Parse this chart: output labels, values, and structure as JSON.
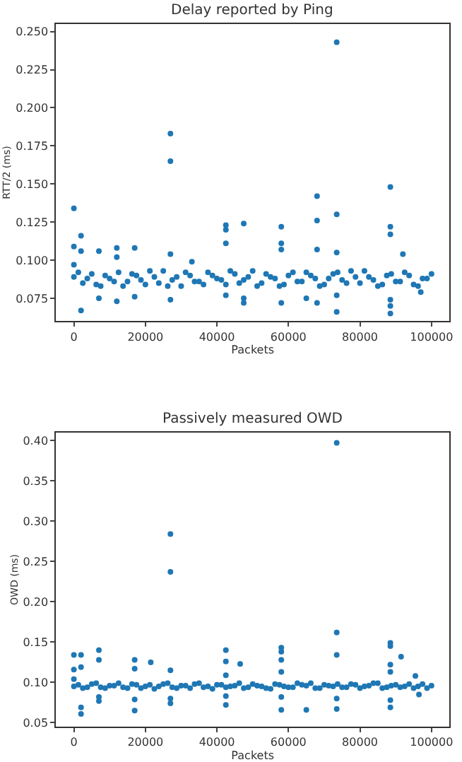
{
  "chart_data": [
    {
      "type": "scatter",
      "title": "Delay reported by Ping",
      "xlabel": "Packets",
      "ylabel": "RTT/2 (ms)",
      "marker": "circle",
      "grid": false,
      "xlim": [
        -5000,
        105000
      ],
      "xticks": [
        0,
        20000,
        40000,
        60000,
        80000,
        100000
      ],
      "ylim": [
        0.06,
        0.255
      ],
      "yticks": [
        0.075,
        {
          "value": 0.1,
          "label": "0.100"
        },
        0.125,
        {
          "value": 0.15,
          "label": "0.150"
        },
        0.175,
        {
          "value": 0.2,
          "label": "0.200"
        },
        0.225,
        {
          "value": 0.25,
          "label": "0.250"
        }
      ],
      "series": [
        {
          "color": "#1f77b4",
          "x": [
            0,
            2500,
            5000,
            7500,
            10000,
            12500,
            15000,
            17500,
            20000,
            22500,
            25000,
            27500,
            30000,
            32500,
            35000,
            37500,
            40000,
            42500,
            45000,
            47500,
            50000,
            52500,
            55000,
            57500,
            60000,
            62500,
            65000,
            67500,
            70000,
            72500,
            75000,
            77500,
            80000,
            82500,
            85000,
            87500,
            90000,
            92500,
            95000,
            97500,
            100000,
            1250,
            3750,
            6250,
            8750,
            11250,
            13750,
            16250,
            18750,
            21250,
            23750,
            26250,
            28750,
            31250,
            33750,
            36250,
            38750,
            41250,
            43750,
            46250,
            48750,
            51250,
            53750,
            56250,
            58750,
            61250,
            63750,
            66250,
            68750,
            71250,
            73750,
            76250,
            78750,
            81250,
            83750,
            86250,
            88750,
            91250,
            93750,
            96250,
            98750,
            0,
            0,
            0,
            2000,
            2000,
            2000,
            7000,
            7000,
            12000,
            12000,
            12000,
            17000,
            17000,
            27000,
            27000,
            27000,
            27000,
            33000,
            42500,
            42500,
            42500,
            42500,
            47500,
            47500,
            47500,
            58000,
            58000,
            58000,
            58000,
            65000,
            68000,
            68000,
            68000,
            68000,
            73500,
            73500,
            73500,
            73500,
            73500,
            88500,
            88500,
            88500,
            88500,
            88500,
            88500,
            92000,
            97000
          ],
          "values": [
            0.089,
            0.085,
            0.091,
            0.083,
            0.088,
            0.092,
            0.086,
            0.09,
            0.084,
            0.089,
            0.093,
            0.087,
            0.083,
            0.09,
            0.086,
            0.092,
            0.088,
            0.084,
            0.091,
            0.087,
            0.093,
            0.085,
            0.089,
            0.083,
            0.09,
            0.086,
            0.092,
            0.088,
            0.084,
            0.091,
            0.087,
            0.093,
            0.085,
            0.089,
            0.083,
            0.09,
            0.086,
            0.092,
            0.084,
            0.088,
            0.091,
            0.092,
            0.088,
            0.084,
            0.09,
            0.086,
            0.083,
            0.091,
            0.087,
            0.093,
            0.085,
            0.083,
            0.089,
            0.092,
            0.086,
            0.084,
            0.09,
            0.087,
            0.093,
            0.085,
            0.089,
            0.083,
            0.091,
            0.088,
            0.084,
            0.092,
            0.086,
            0.09,
            0.083,
            0.088,
            0.092,
            0.085,
            0.089,
            0.093,
            0.087,
            0.084,
            0.091,
            0.086,
            0.09,
            0.083,
            0.088,
            0.134,
            0.109,
            0.097,
            0.116,
            0.067,
            0.106,
            0.106,
            0.075,
            0.108,
            0.073,
            0.102,
            0.108,
            0.076,
            0.183,
            0.165,
            0.104,
            0.074,
            0.099,
            0.123,
            0.12,
            0.111,
            0.077,
            0.124,
            0.072,
            0.075,
            0.122,
            0.111,
            0.107,
            0.072,
            0.075,
            0.142,
            0.126,
            0.107,
            0.072,
            0.243,
            0.13,
            0.105,
            0.066,
            0.077,
            0.148,
            0.122,
            0.117,
            0.065,
            0.07,
            0.074,
            0.104,
            0.079
          ]
        }
      ]
    },
    {
      "type": "scatter",
      "title": "Passively measured OWD",
      "xlabel": "Packets",
      "ylabel": "OWD (ms)",
      "marker": "circle",
      "grid": false,
      "xlim": [
        -5000,
        105000
      ],
      "xticks": [
        0,
        20000,
        40000,
        60000,
        80000,
        100000
      ],
      "ylim": [
        0.045,
        0.41
      ],
      "yticks": [
        0.05,
        {
          "value": 0.1,
          "label": "0.10"
        },
        0.15,
        {
          "value": 0.2,
          "label": "0.20"
        },
        0.25,
        {
          "value": 0.3,
          "label": "0.30"
        },
        0.35,
        {
          "value": 0.4,
          "label": "0.40"
        }
      ],
      "series": [
        {
          "color": "#1f77b4",
          "x": [
            0,
            2500,
            5000,
            7500,
            10000,
            12500,
            15000,
            17500,
            20000,
            22500,
            25000,
            27500,
            30000,
            32500,
            35000,
            37500,
            40000,
            42500,
            45000,
            47500,
            50000,
            52500,
            55000,
            57500,
            60000,
            62500,
            65000,
            67500,
            70000,
            72500,
            75000,
            77500,
            80000,
            82500,
            85000,
            87500,
            90000,
            92500,
            95000,
            97500,
            100000,
            1250,
            3750,
            6250,
            8750,
            11250,
            13750,
            16250,
            18750,
            21250,
            23750,
            26250,
            28750,
            31250,
            33750,
            36250,
            38750,
            41250,
            43750,
            46250,
            48750,
            51250,
            53750,
            56250,
            58750,
            61250,
            63750,
            66250,
            68750,
            71250,
            73750,
            76250,
            78750,
            81250,
            83750,
            86250,
            88750,
            91250,
            93750,
            96250,
            98750,
            0,
            0,
            0,
            2000,
            2000,
            2000,
            2000,
            7000,
            7000,
            7000,
            7000,
            17000,
            17000,
            17000,
            17000,
            21500,
            27000,
            27000,
            27000,
            27000,
            27000,
            42500,
            42500,
            42500,
            42500,
            42500,
            46500,
            58000,
            58000,
            58000,
            58000,
            58000,
            58000,
            65000,
            73500,
            73500,
            73500,
            73500,
            73500,
            88500,
            88500,
            88500,
            88500,
            88500,
            88500,
            91500,
            95500,
            96500
          ],
          "values": [
            0.095,
            0.093,
            0.098,
            0.094,
            0.096,
            0.099,
            0.093,
            0.097,
            0.095,
            0.092,
            0.098,
            0.094,
            0.096,
            0.093,
            0.099,
            0.095,
            0.097,
            0.094,
            0.096,
            0.093,
            0.098,
            0.095,
            0.092,
            0.097,
            0.094,
            0.099,
            0.096,
            0.093,
            0.097,
            0.095,
            0.094,
            0.098,
            0.093,
            0.096,
            0.099,
            0.094,
            0.097,
            0.095,
            0.093,
            0.098,
            0.096,
            0.097,
            0.094,
            0.099,
            0.093,
            0.096,
            0.094,
            0.098,
            0.093,
            0.097,
            0.095,
            0.099,
            0.093,
            0.096,
            0.098,
            0.094,
            0.092,
            0.097,
            0.095,
            0.099,
            0.094,
            0.096,
            0.093,
            0.098,
            0.095,
            0.094,
            0.097,
            0.099,
            0.093,
            0.096,
            0.098,
            0.094,
            0.097,
            0.095,
            0.099,
            0.093,
            0.096,
            0.094,
            0.098,
            0.095,
            0.093,
            0.134,
            0.116,
            0.104,
            0.134,
            0.119,
            0.069,
            0.061,
            0.14,
            0.128,
            0.082,
            0.077,
            0.128,
            0.117,
            0.079,
            0.065,
            0.125,
            0.284,
            0.237,
            0.115,
            0.08,
            0.074,
            0.14,
            0.126,
            0.109,
            0.083,
            0.072,
            0.123,
            0.143,
            0.138,
            0.128,
            0.113,
            0.082,
            0.066,
            0.066,
            0.397,
            0.162,
            0.134,
            0.08,
            0.067,
            0.149,
            0.145,
            0.122,
            0.113,
            0.078,
            0.069,
            0.132,
            0.108,
            0.085
          ]
        }
      ]
    }
  ]
}
